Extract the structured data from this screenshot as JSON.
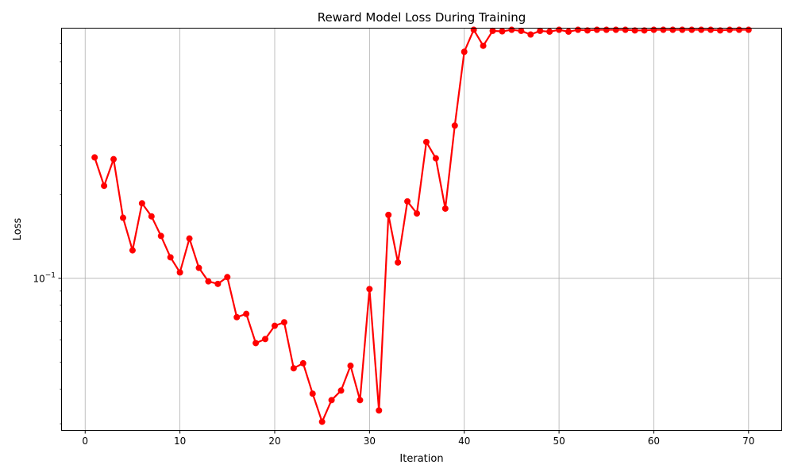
{
  "chart_data": {
    "type": "line",
    "title": "Reward Model Loss During Training",
    "xlabel": "Iteration",
    "ylabel": "Loss",
    "xlim": [
      -2.45,
      73.45
    ],
    "ylim": [
      0.0285,
      0.79
    ],
    "yscale": "log",
    "grid": true,
    "line_color": "#ff0000",
    "x_ticks": [
      0,
      10,
      20,
      30,
      40,
      50,
      60,
      70
    ],
    "x_tick_labels": [
      "0",
      "10",
      "20",
      "30",
      "40",
      "50",
      "60",
      "70"
    ],
    "y_major_tick": 0.1,
    "y_major_tick_label": "10",
    "y_major_tick_exponent": "−1",
    "y_minor_ticks": [
      0.03,
      0.04,
      0.05,
      0.06,
      0.07,
      0.08,
      0.09,
      0.2,
      0.3,
      0.4,
      0.5,
      0.6,
      0.7
    ],
    "series": [
      {
        "x": [
          1,
          2,
          3,
          4,
          5,
          6,
          7,
          8,
          9,
          10,
          11,
          12,
          13,
          14,
          15,
          16,
          17,
          18,
          19,
          20,
          21,
          22,
          23,
          24,
          25,
          26,
          27,
          28,
          29,
          30,
          31,
          32,
          33,
          34,
          35,
          36,
          37,
          38,
          39,
          40,
          41,
          42,
          43,
          44,
          45,
          46,
          47,
          48,
          49,
          50,
          51,
          52,
          53,
          54,
          55,
          56,
          57,
          58,
          59,
          60,
          61,
          62,
          63,
          64,
          65,
          66,
          67,
          68,
          69,
          70
        ],
        "values": [
          0.272,
          0.215,
          0.268,
          0.165,
          0.126,
          0.186,
          0.167,
          0.142,
          0.119,
          0.105,
          0.139,
          0.109,
          0.0975,
          0.0955,
          0.101,
          0.0725,
          0.0745,
          0.0585,
          0.0605,
          0.0675,
          0.0695,
          0.0475,
          0.0495,
          0.0385,
          0.0305,
          0.0365,
          0.0395,
          0.0485,
          0.0365,
          0.0915,
          0.0335,
          0.169,
          0.114,
          0.189,
          0.171,
          0.309,
          0.27,
          0.178,
          0.354,
          0.652,
          0.782,
          0.685,
          0.775,
          0.772,
          0.782,
          0.775,
          0.752,
          0.775,
          0.77,
          0.782,
          0.77,
          0.782,
          0.778,
          0.782,
          0.782,
          0.782,
          0.782,
          0.778,
          0.778,
          0.782,
          0.782,
          0.782,
          0.782,
          0.782,
          0.782,
          0.782,
          0.778,
          0.782,
          0.782,
          0.782
        ]
      }
    ]
  }
}
